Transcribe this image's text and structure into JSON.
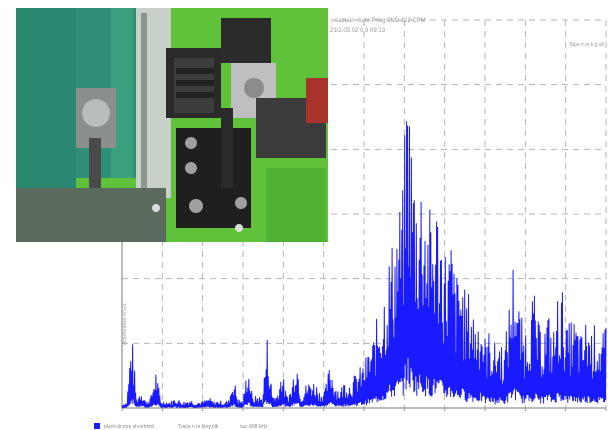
{
  "chart_data": {
    "type": "line",
    "header_lines": [
      "...sadual : Auto Pring 2ND 222 CPM",
      "21/2.03.02 0.9 09:13"
    ],
    "corner_label": "Tape n.m.k.g.uk",
    "ylabel": "Acceleration in G's",
    "legend": [
      {
        "swatch_color": "#1a1aff",
        "text": "plant ctr.mm sh.ortmrd"
      },
      {
        "text": "Trace n.m.ltmy.olk"
      },
      {
        "text": "suc.668 kHz"
      }
    ],
    "series": [
      {
        "color": "#1a1aff",
        "x": [
          0.0,
          0.01,
          0.02,
          0.03,
          0.04,
          0.05,
          0.06,
          0.07,
          0.08,
          0.09,
          0.1,
          0.11,
          0.12,
          0.13,
          0.14,
          0.15,
          0.16,
          0.17,
          0.18,
          0.19,
          0.2,
          0.21,
          0.22,
          0.23,
          0.24,
          0.25,
          0.26,
          0.27,
          0.28,
          0.29,
          0.3,
          0.31,
          0.32,
          0.33,
          0.34,
          0.35,
          0.36,
          0.37,
          0.38,
          0.39,
          0.4,
          0.41,
          0.42,
          0.43,
          0.44,
          0.45,
          0.46,
          0.47,
          0.48,
          0.49,
          0.5,
          0.51,
          0.52,
          0.53,
          0.54,
          0.55,
          0.56,
          0.57,
          0.58,
          0.59,
          0.6,
          0.61,
          0.62,
          0.63,
          0.64,
          0.65,
          0.66,
          0.67,
          0.68,
          0.69,
          0.7,
          0.71,
          0.72,
          0.73,
          0.74,
          0.75,
          0.76,
          0.77,
          0.78,
          0.79,
          0.8,
          0.81,
          0.82,
          0.83,
          0.84,
          0.85,
          0.86,
          0.87,
          0.88,
          0.89,
          0.9,
          0.91,
          0.92,
          0.93,
          0.94,
          0.95,
          0.96,
          0.97,
          0.98,
          0.99,
          1.0
        ],
        "y": [
          0.03,
          0.05,
          0.6,
          0.08,
          0.15,
          0.05,
          0.1,
          0.3,
          0.06,
          0.05,
          0.05,
          0.08,
          0.06,
          0.05,
          0.07,
          0.05,
          0.05,
          0.06,
          0.08,
          0.05,
          0.06,
          0.05,
          0.06,
          0.25,
          0.07,
          0.06,
          0.35,
          0.08,
          0.1,
          0.08,
          0.55,
          0.12,
          0.1,
          0.3,
          0.1,
          0.15,
          0.45,
          0.1,
          0.18,
          0.22,
          0.2,
          0.12,
          0.15,
          0.35,
          0.2,
          0.14,
          0.22,
          0.2,
          0.25,
          0.3,
          0.35,
          0.45,
          0.55,
          0.75,
          0.9,
          1.15,
          1.3,
          1.5,
          1.65,
          2.7,
          2.0,
          1.7,
          1.85,
          1.6,
          1.45,
          1.6,
          1.4,
          1.2,
          1.3,
          1.0,
          1.1,
          0.85,
          0.9,
          0.7,
          0.8,
          0.55,
          0.6,
          0.5,
          0.55,
          0.45,
          0.8,
          1.2,
          0.8,
          0.6,
          0.7,
          0.9,
          0.65,
          0.6,
          0.75,
          0.55,
          0.85,
          0.9,
          0.6,
          0.7,
          0.65,
          0.55,
          0.7,
          0.6,
          0.65,
          0.55,
          0.6
        ]
      }
    ],
    "ylim": [
      0,
      2.9
    ],
    "xlim": [
      0,
      1
    ],
    "grid": true
  },
  "photo": {
    "icon": "motor-coupling-photo"
  }
}
